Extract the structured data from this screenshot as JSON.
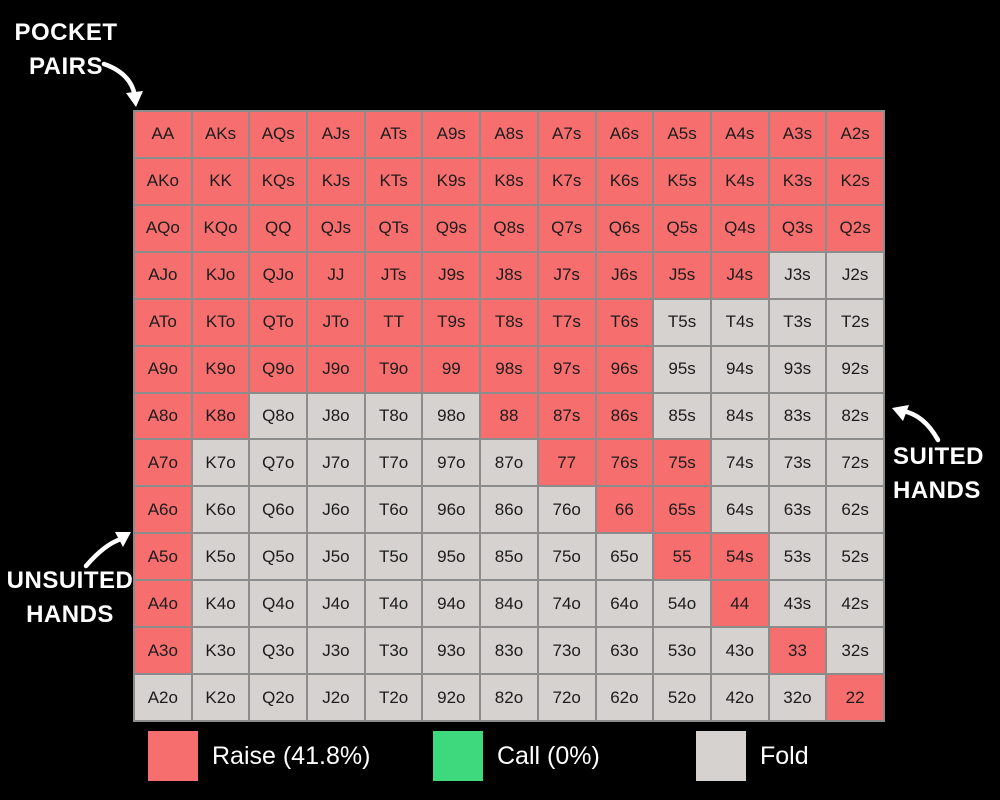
{
  "background": "#000000",
  "annotations": {
    "pocket_pairs": {
      "line1": "POCKET",
      "line2": "PAIRS"
    },
    "suited": {
      "line1": "SUITED",
      "line2": "HANDS"
    },
    "unsuited": {
      "line1": "UNSUITED",
      "line2": "HANDS"
    }
  },
  "legend": [
    {
      "label": "Raise (41.8%)",
      "action": "R",
      "color": "#F76E6E"
    },
    {
      "label": "Call (0%)",
      "action": "C",
      "color": "#3ED97D"
    },
    {
      "label": "Fold",
      "action": "F",
      "color": "#D5D2CF"
    }
  ],
  "chart_data": {
    "type": "heatmap",
    "title": "",
    "legend_position": "bottom",
    "raise_percent": 41.8,
    "call_percent": 0,
    "grid_line_color": "#8C8C8C",
    "action_colors": {
      "R": "#F76E6E",
      "C": "#3ED97D",
      "F": "#D5D2CF"
    },
    "action_names": {
      "R": "Raise",
      "C": "Call",
      "F": "Fold"
    },
    "hands": [
      [
        "AA",
        "AKs",
        "AQs",
        "AJs",
        "ATs",
        "A9s",
        "A8s",
        "A7s",
        "A6s",
        "A5s",
        "A4s",
        "A3s",
        "A2s"
      ],
      [
        "AKo",
        "KK",
        "KQs",
        "KJs",
        "KTs",
        "K9s",
        "K8s",
        "K7s",
        "K6s",
        "K5s",
        "K4s",
        "K3s",
        "K2s"
      ],
      [
        "AQo",
        "KQo",
        "QQ",
        "QJs",
        "QTs",
        "Q9s",
        "Q8s",
        "Q7s",
        "Q6s",
        "Q5s",
        "Q4s",
        "Q3s",
        "Q2s"
      ],
      [
        "AJo",
        "KJo",
        "QJo",
        "JJ",
        "JTs",
        "J9s",
        "J8s",
        "J7s",
        "J6s",
        "J5s",
        "J4s",
        "J3s",
        "J2s"
      ],
      [
        "ATo",
        "KTo",
        "QTo",
        "JTo",
        "TT",
        "T9s",
        "T8s",
        "T7s",
        "T6s",
        "T5s",
        "T4s",
        "T3s",
        "T2s"
      ],
      [
        "A9o",
        "K9o",
        "Q9o",
        "J9o",
        "T9o",
        "99",
        "98s",
        "97s",
        "96s",
        "95s",
        "94s",
        "93s",
        "92s"
      ],
      [
        "A8o",
        "K8o",
        "Q8o",
        "J8o",
        "T8o",
        "98o",
        "88",
        "87s",
        "86s",
        "85s",
        "84s",
        "83s",
        "82s"
      ],
      [
        "A7o",
        "K7o",
        "Q7o",
        "J7o",
        "T7o",
        "97o",
        "87o",
        "77",
        "76s",
        "75s",
        "74s",
        "73s",
        "72s"
      ],
      [
        "A6o",
        "K6o",
        "Q6o",
        "J6o",
        "T6o",
        "96o",
        "86o",
        "76o",
        "66",
        "65s",
        "64s",
        "63s",
        "62s"
      ],
      [
        "A5o",
        "K5o",
        "Q5o",
        "J5o",
        "T5o",
        "95o",
        "85o",
        "75o",
        "65o",
        "55",
        "54s",
        "53s",
        "52s"
      ],
      [
        "A4o",
        "K4o",
        "Q4o",
        "J4o",
        "T4o",
        "94o",
        "84o",
        "74o",
        "64o",
        "54o",
        "44",
        "43s",
        "42s"
      ],
      [
        "A3o",
        "K3o",
        "Q3o",
        "J3o",
        "T3o",
        "93o",
        "83o",
        "73o",
        "63o",
        "53o",
        "43o",
        "33",
        "32s"
      ],
      [
        "A2o",
        "K2o",
        "Q2o",
        "J2o",
        "T2o",
        "92o",
        "82o",
        "72o",
        "62o",
        "52o",
        "42o",
        "32o",
        "22"
      ]
    ],
    "actions": [
      [
        "R",
        "R",
        "R",
        "R",
        "R",
        "R",
        "R",
        "R",
        "R",
        "R",
        "R",
        "R",
        "R"
      ],
      [
        "R",
        "R",
        "R",
        "R",
        "R",
        "R",
        "R",
        "R",
        "R",
        "R",
        "R",
        "R",
        "R"
      ],
      [
        "R",
        "R",
        "R",
        "R",
        "R",
        "R",
        "R",
        "R",
        "R",
        "R",
        "R",
        "R",
        "R"
      ],
      [
        "R",
        "R",
        "R",
        "R",
        "R",
        "R",
        "R",
        "R",
        "R",
        "R",
        "R",
        "F",
        "F"
      ],
      [
        "R",
        "R",
        "R",
        "R",
        "R",
        "R",
        "R",
        "R",
        "R",
        "F",
        "F",
        "F",
        "F"
      ],
      [
        "R",
        "R",
        "R",
        "R",
        "R",
        "R",
        "R",
        "R",
        "R",
        "F",
        "F",
        "F",
        "F"
      ],
      [
        "R",
        "R",
        "F",
        "F",
        "F",
        "F",
        "R",
        "R",
        "R",
        "F",
        "F",
        "F",
        "F"
      ],
      [
        "R",
        "F",
        "F",
        "F",
        "F",
        "F",
        "F",
        "R",
        "R",
        "R",
        "F",
        "F",
        "F"
      ],
      [
        "R",
        "F",
        "F",
        "F",
        "F",
        "F",
        "F",
        "F",
        "R",
        "R",
        "F",
        "F",
        "F"
      ],
      [
        "R",
        "F",
        "F",
        "F",
        "F",
        "F",
        "F",
        "F",
        "F",
        "R",
        "R",
        "F",
        "F"
      ],
      [
        "R",
        "F",
        "F",
        "F",
        "F",
        "F",
        "F",
        "F",
        "F",
        "F",
        "R",
        "F",
        "F"
      ],
      [
        "R",
        "F",
        "F",
        "F",
        "F",
        "F",
        "F",
        "F",
        "F",
        "F",
        "F",
        "R",
        "F"
      ],
      [
        "F",
        "F",
        "F",
        "F",
        "F",
        "F",
        "F",
        "F",
        "F",
        "F",
        "F",
        "F",
        "R"
      ]
    ]
  }
}
